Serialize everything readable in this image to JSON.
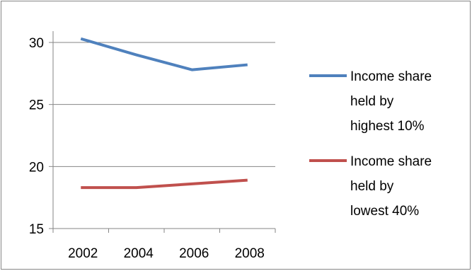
{
  "chart_data": {
    "type": "line",
    "title": "",
    "xlabel": "",
    "ylabel": "",
    "categories": [
      "2002",
      "2004",
      "2006",
      "2008"
    ],
    "x": [
      2001,
      2003,
      2005,
      2007
    ],
    "series": [
      {
        "name": "Income share held by highest 10%",
        "legend_lines": [
          "Income share",
          "held by",
          "highest 10%"
        ],
        "color": "#4F81BD",
        "values": [
          30.3,
          29.0,
          27.8,
          28.2
        ]
      },
      {
        "name": "Income share held by lowest 40%",
        "legend_lines": [
          "Income share",
          "held by",
          "lowest 40%"
        ],
        "color": "#C0504D",
        "values": [
          18.3,
          18.3,
          18.6,
          18.9
        ]
      }
    ],
    "ylim": [
      15,
      30
    ],
    "yticks": [
      15,
      20,
      25,
      30
    ],
    "ytick_labels": [
      "15",
      "20",
      "25",
      "30"
    ],
    "grid": true,
    "legend_position": "right",
    "gridline_color": "#868686",
    "axis_color": "#868686"
  }
}
